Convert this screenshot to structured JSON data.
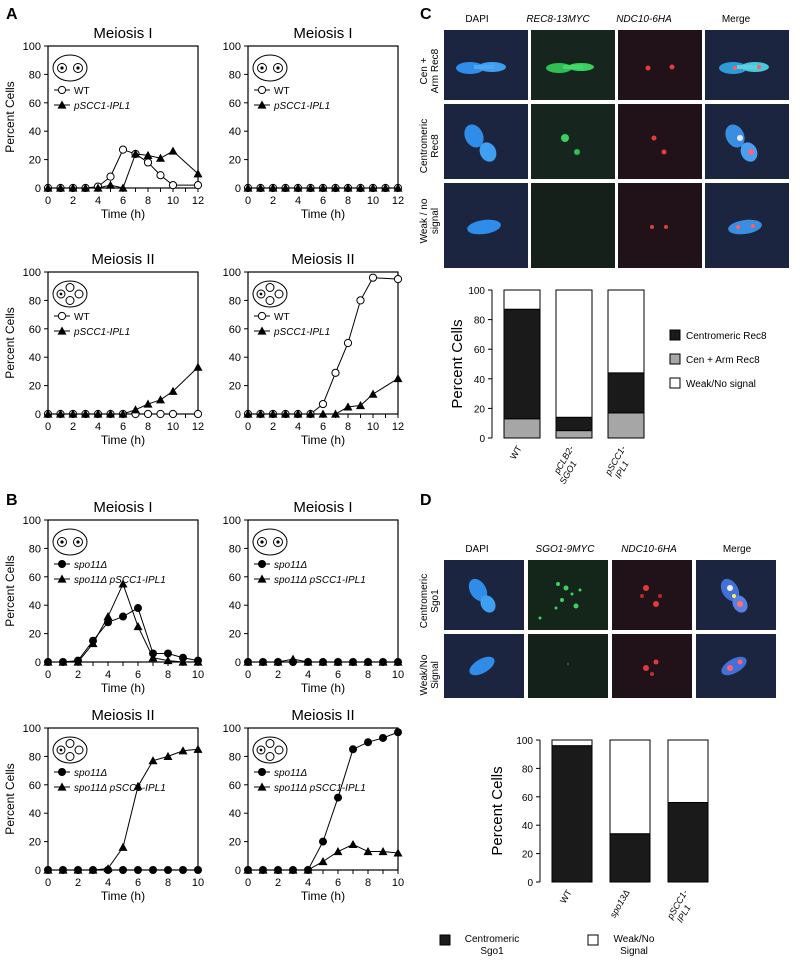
{
  "panel_labels": [
    "A",
    "B",
    "C",
    "D"
  ],
  "chart_data": [
    {
      "id": "A1",
      "type": "line",
      "title": "Meiosis I",
      "ylabel": "Percent Cells",
      "xlabel": "Time (h)",
      "ylim": [
        0,
        100
      ],
      "xlim": [
        0,
        12
      ],
      "xticks": [
        0,
        2,
        4,
        6,
        8,
        10,
        12
      ],
      "yticks": [
        0,
        20,
        40,
        60,
        80,
        100
      ],
      "legend_loc": "top-left",
      "cell_icon": "two-nuclei",
      "series": [
        {
          "name": "WT",
          "marker": "open-circle",
          "x": [
            0,
            1,
            2,
            3,
            4,
            5,
            6,
            7,
            8,
            9,
            10,
            12
          ],
          "y": [
            0,
            0,
            0,
            0,
            1,
            8,
            27,
            24,
            18,
            9,
            2,
            2
          ]
        },
        {
          "name": "pSCC1-IPL1",
          "marker": "filled-triangle",
          "x": [
            0,
            1,
            2,
            3,
            4,
            5,
            6,
            7,
            8,
            9,
            10,
            12
          ],
          "y": [
            0,
            0,
            0,
            0,
            0,
            2,
            0,
            24,
            23,
            21,
            26,
            10
          ]
        }
      ]
    },
    {
      "id": "A2",
      "type": "line",
      "title": "Meiosis I",
      "ylabel": "",
      "xlabel": "Time (h)",
      "ylim": [
        0,
        100
      ],
      "xlim": [
        0,
        12
      ],
      "xticks": [
        0,
        2,
        4,
        6,
        8,
        10,
        12
      ],
      "yticks": [
        0,
        20,
        40,
        60,
        80,
        100
      ],
      "legend_loc": "top-left",
      "cell_icon": "two-nuclei",
      "series": [
        {
          "name": "WT",
          "marker": "open-circle",
          "x": [
            0,
            1,
            2,
            3,
            4,
            5,
            6,
            7,
            8,
            9,
            10,
            11,
            12
          ],
          "y": [
            0,
            0,
            0,
            0,
            0,
            0,
            0,
            0,
            0,
            0,
            0,
            0,
            0
          ]
        },
        {
          "name": "pSCC1-IPL1",
          "marker": "filled-triangle",
          "x": [
            0,
            1,
            2,
            3,
            4,
            5,
            6,
            7,
            8,
            9,
            10,
            11,
            12
          ],
          "y": [
            0,
            0,
            0,
            0,
            0,
            0,
            0,
            0,
            0,
            0,
            0,
            0,
            0
          ]
        }
      ]
    },
    {
      "id": "A3",
      "type": "line",
      "title": "Meiosis II",
      "ylabel": "Percent Cells",
      "xlabel": "Time (h)",
      "ylim": [
        0,
        100
      ],
      "xlim": [
        0,
        12
      ],
      "xticks": [
        0,
        2,
        4,
        6,
        8,
        10,
        12
      ],
      "yticks": [
        0,
        20,
        40,
        60,
        80,
        100
      ],
      "legend_loc": "top-left",
      "cell_icon": "four-nuclei",
      "series": [
        {
          "name": "WT",
          "marker": "open-circle",
          "x": [
            0,
            1,
            2,
            3,
            4,
            5,
            6,
            7,
            8,
            9,
            10,
            12
          ],
          "y": [
            0,
            0,
            0,
            0,
            0,
            0,
            0,
            0,
            0,
            0,
            0,
            0
          ]
        },
        {
          "name": "pSCC1-IPL1",
          "marker": "filled-triangle",
          "x": [
            0,
            1,
            2,
            3,
            4,
            5,
            6,
            7,
            8,
            9,
            10,
            12
          ],
          "y": [
            0,
            0,
            0,
            0,
            0,
            0,
            0,
            3,
            7,
            10,
            16,
            33
          ]
        }
      ]
    },
    {
      "id": "A4",
      "type": "line",
      "title": "Meiosis II",
      "ylabel": "",
      "xlabel": "Time (h)",
      "ylim": [
        0,
        100
      ],
      "xlim": [
        0,
        12
      ],
      "xticks": [
        0,
        2,
        4,
        6,
        8,
        10,
        12
      ],
      "yticks": [
        0,
        20,
        40,
        60,
        80,
        100
      ],
      "legend_loc": "top-left",
      "cell_icon": "four-nuclei",
      "series": [
        {
          "name": "WT",
          "marker": "open-circle",
          "x": [
            0,
            1,
            2,
            3,
            4,
            5,
            6,
            7,
            8,
            9,
            10,
            12
          ],
          "y": [
            0,
            0,
            0,
            0,
            0,
            0,
            7,
            29,
            50,
            80,
            96,
            95
          ]
        },
        {
          "name": "pSCC1-IPL1",
          "marker": "filled-triangle",
          "x": [
            0,
            1,
            2,
            3,
            4,
            5,
            6,
            7,
            8,
            9,
            10,
            12
          ],
          "y": [
            0,
            0,
            0,
            0,
            0,
            0,
            0,
            0,
            5,
            6,
            14,
            25
          ]
        }
      ]
    },
    {
      "id": "B1",
      "type": "line",
      "title": "Meiosis I",
      "ylabel": "Percent Cells",
      "xlabel": "Time (h)",
      "ylim": [
        0,
        100
      ],
      "xlim": [
        0,
        10
      ],
      "xticks": [
        0,
        2,
        4,
        6,
        8,
        10
      ],
      "yticks": [
        0,
        20,
        40,
        60,
        80,
        100
      ],
      "legend_loc": "top-left",
      "cell_icon": "two-nuclei",
      "series": [
        {
          "name": "spo11Δ",
          "marker": "filled-circle",
          "x": [
            0,
            1,
            2,
            3,
            4,
            5,
            6,
            7,
            8,
            9,
            10
          ],
          "y": [
            0,
            0,
            1,
            15,
            28,
            32,
            38,
            6,
            6,
            3,
            1
          ]
        },
        {
          "name": "spo11Δ pSCC1-IPL1",
          "marker": "filled-triangle",
          "x": [
            0,
            1,
            2,
            3,
            4,
            5,
            6,
            7,
            8,
            9,
            10
          ],
          "y": [
            0,
            0,
            0,
            13,
            32,
            55,
            25,
            3,
            1,
            0,
            0
          ]
        }
      ]
    },
    {
      "id": "B2",
      "type": "line",
      "title": "Meiosis I",
      "ylabel": "",
      "xlabel": "Time (h)",
      "ylim": [
        0,
        100
      ],
      "xlim": [
        0,
        10
      ],
      "xticks": [
        0,
        2,
        4,
        6,
        8,
        10
      ],
      "yticks": [
        0,
        20,
        40,
        60,
        80,
        100
      ],
      "legend_loc": "top-left",
      "cell_icon": "two-nuclei",
      "series": [
        {
          "name": "spo11Δ",
          "marker": "filled-circle",
          "x": [
            0,
            1,
            2,
            3,
            4,
            5,
            6,
            7,
            8,
            9,
            10
          ],
          "y": [
            0,
            0,
            0,
            0,
            0,
            0,
            0,
            0,
            0,
            0,
            0
          ]
        },
        {
          "name": "spo11Δ pSCC1-IPL1",
          "marker": "filled-triangle",
          "x": [
            0,
            1,
            2,
            3,
            4,
            5,
            6,
            7,
            8,
            9,
            10
          ],
          "y": [
            0,
            0,
            0,
            2,
            0,
            0,
            0,
            0,
            0,
            0,
            0
          ]
        }
      ]
    },
    {
      "id": "B3",
      "type": "line",
      "title": "Meiosis II",
      "ylabel": "Percent Cells",
      "xlabel": "Time (h)",
      "ylim": [
        0,
        100
      ],
      "xlim": [
        0,
        10
      ],
      "xticks": [
        0,
        2,
        4,
        6,
        8,
        10
      ],
      "yticks": [
        0,
        20,
        40,
        60,
        80,
        100
      ],
      "legend_loc": "top-left",
      "cell_icon": "four-nuclei",
      "series": [
        {
          "name": "spo11Δ",
          "marker": "filled-circle",
          "x": [
            0,
            1,
            2,
            3,
            4,
            5,
            6,
            7,
            8,
            9,
            10
          ],
          "y": [
            0,
            0,
            0,
            0,
            0,
            0,
            0,
            0,
            0,
            0,
            0
          ]
        },
        {
          "name": "spo11Δ pSCC1-IPL1",
          "marker": "filled-triangle",
          "x": [
            0,
            1,
            2,
            3,
            4,
            5,
            6,
            7,
            8,
            9,
            10
          ],
          "y": [
            0,
            0,
            0,
            0,
            1,
            16,
            59,
            77,
            80,
            84,
            85
          ]
        }
      ]
    },
    {
      "id": "B4",
      "type": "line",
      "title": "Meiosis II",
      "ylabel": "",
      "xlabel": "Time (h)",
      "ylim": [
        0,
        100
      ],
      "xlim": [
        0,
        10
      ],
      "xticks": [
        0,
        2,
        4,
        6,
        8,
        10
      ],
      "yticks": [
        0,
        20,
        40,
        60,
        80,
        100
      ],
      "legend_loc": "top-left",
      "cell_icon": "four-nuclei",
      "series": [
        {
          "name": "spo11Δ",
          "marker": "filled-circle",
          "x": [
            0,
            1,
            2,
            3,
            4,
            5,
            6,
            7,
            8,
            9,
            10
          ],
          "y": [
            0,
            0,
            0,
            0,
            0,
            20,
            51,
            85,
            90,
            93,
            97
          ]
        },
        {
          "name": "spo11Δ pSCC1-IPL1",
          "marker": "filled-triangle",
          "x": [
            0,
            1,
            2,
            3,
            4,
            5,
            6,
            7,
            8,
            9,
            10
          ],
          "y": [
            0,
            0,
            0,
            0,
            0,
            6,
            13,
            18,
            13,
            13,
            12
          ]
        }
      ]
    },
    {
      "id": "C",
      "type": "bar",
      "stacked": true,
      "ylabel": "Percent Cells",
      "ylim": [
        0,
        100
      ],
      "yticks": [
        0,
        20,
        40,
        60,
        80,
        100
      ],
      "categories": [
        "WT",
        "pCLB2-SGO1",
        "pSCC1-IPL1"
      ],
      "category_lines": [
        [
          "WT"
        ],
        [
          "pCLB2-",
          "SGO1"
        ],
        [
          "pSCC1-",
          "IPL1"
        ]
      ],
      "legend_loc": "right",
      "series": [
        {
          "name": "Cen + Arm Rec8",
          "color": "#a6a6a6",
          "values": [
            13,
            5,
            17
          ]
        },
        {
          "name": "Centromeric Rec8",
          "color": "#1a1a1a",
          "values": [
            74,
            9,
            27
          ]
        },
        {
          "name": "Weak/No signal",
          "color": "#ffffff",
          "values": [
            13,
            86,
            56
          ]
        }
      ],
      "legend_order": [
        "Centromeric Rec8",
        "Cen + Arm Rec8",
        "Weak/No signal"
      ]
    },
    {
      "id": "D",
      "type": "bar",
      "stacked": true,
      "ylabel": "Percent Cells",
      "ylim": [
        0,
        100
      ],
      "yticks": [
        0,
        20,
        40,
        60,
        80,
        100
      ],
      "categories": [
        "WT",
        "spo13Δ",
        "pSCC1-IPL1"
      ],
      "category_lines": [
        [
          "WT"
        ],
        [
          "spo13Δ"
        ],
        [
          "pSCC1-",
          "IPL1"
        ]
      ],
      "legend_loc": "bottom",
      "series": [
        {
          "name": "Centromeric Sgo1",
          "color": "#1a1a1a",
          "values": [
            96,
            34,
            56
          ]
        },
        {
          "name": "Weak/No Signal",
          "color": "#ffffff",
          "values": [
            4,
            66,
            44
          ]
        }
      ],
      "legend_lines": [
        [
          "Centromeric",
          "Sgo1"
        ],
        [
          "Weak/No",
          "Signal"
        ]
      ]
    }
  ],
  "micrographs": {
    "C": {
      "columns": [
        {
          "label": "DAPI",
          "italic": false
        },
        {
          "label": "REC8-13MYC",
          "italic": true
        },
        {
          "label": "NDC10-6HA",
          "italic": true
        },
        {
          "label": "Merge",
          "italic": false
        }
      ],
      "rows": [
        {
          "label_lines": [
            "Cen +",
            "Arm Rec8"
          ]
        },
        {
          "label_lines": [
            "Centromeric",
            "Rec8"
          ]
        },
        {
          "label_lines": [
            "Weak / no",
            "signal"
          ]
        }
      ]
    },
    "D": {
      "columns": [
        {
          "label": "DAPI",
          "italic": false
        },
        {
          "label": "SGO1-9MYC",
          "italic": true
        },
        {
          "label": "NDC10-6HA",
          "italic": true
        },
        {
          "label": "Merge",
          "italic": false
        }
      ],
      "rows": [
        {
          "label_lines": [
            "Centromeric",
            "Sgo1"
          ]
        },
        {
          "label_lines": [
            "Weak/No",
            "Signal"
          ]
        }
      ]
    }
  }
}
